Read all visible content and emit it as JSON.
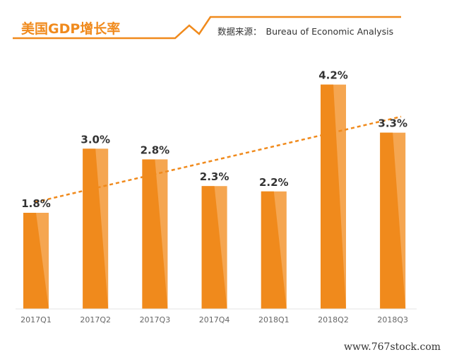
{
  "header": {
    "title": "美国GDP增长率",
    "source_label": "数据来源：",
    "source_value": "Bureau of Economic Analysis"
  },
  "footer": {
    "site": "www.767stock.com"
  },
  "colors": {
    "accent": "#f08a1c",
    "bar_dark": "#f08a1c",
    "bar_light": "#f5a651",
    "trend": "#f08a1c"
  },
  "chart_data": {
    "type": "bar",
    "title": "美国GDP增长率",
    "categories": [
      "2017Q1",
      "2017Q2",
      "2017Q3",
      "2017Q4",
      "2018Q1",
      "2018Q2",
      "2018Q3"
    ],
    "values": [
      1.8,
      3.0,
      2.8,
      2.3,
      2.2,
      4.2,
      3.3
    ],
    "value_labels": [
      "1.8%",
      "3.0%",
      "2.8%",
      "2.3%",
      "2.2%",
      "4.2%",
      "3.3%"
    ],
    "unit": "%",
    "ylim": [
      0,
      4.5
    ],
    "trendline": {
      "style": "dashed",
      "start": 2.0,
      "end": 3.6
    },
    "grid": false,
    "legend": "none"
  }
}
